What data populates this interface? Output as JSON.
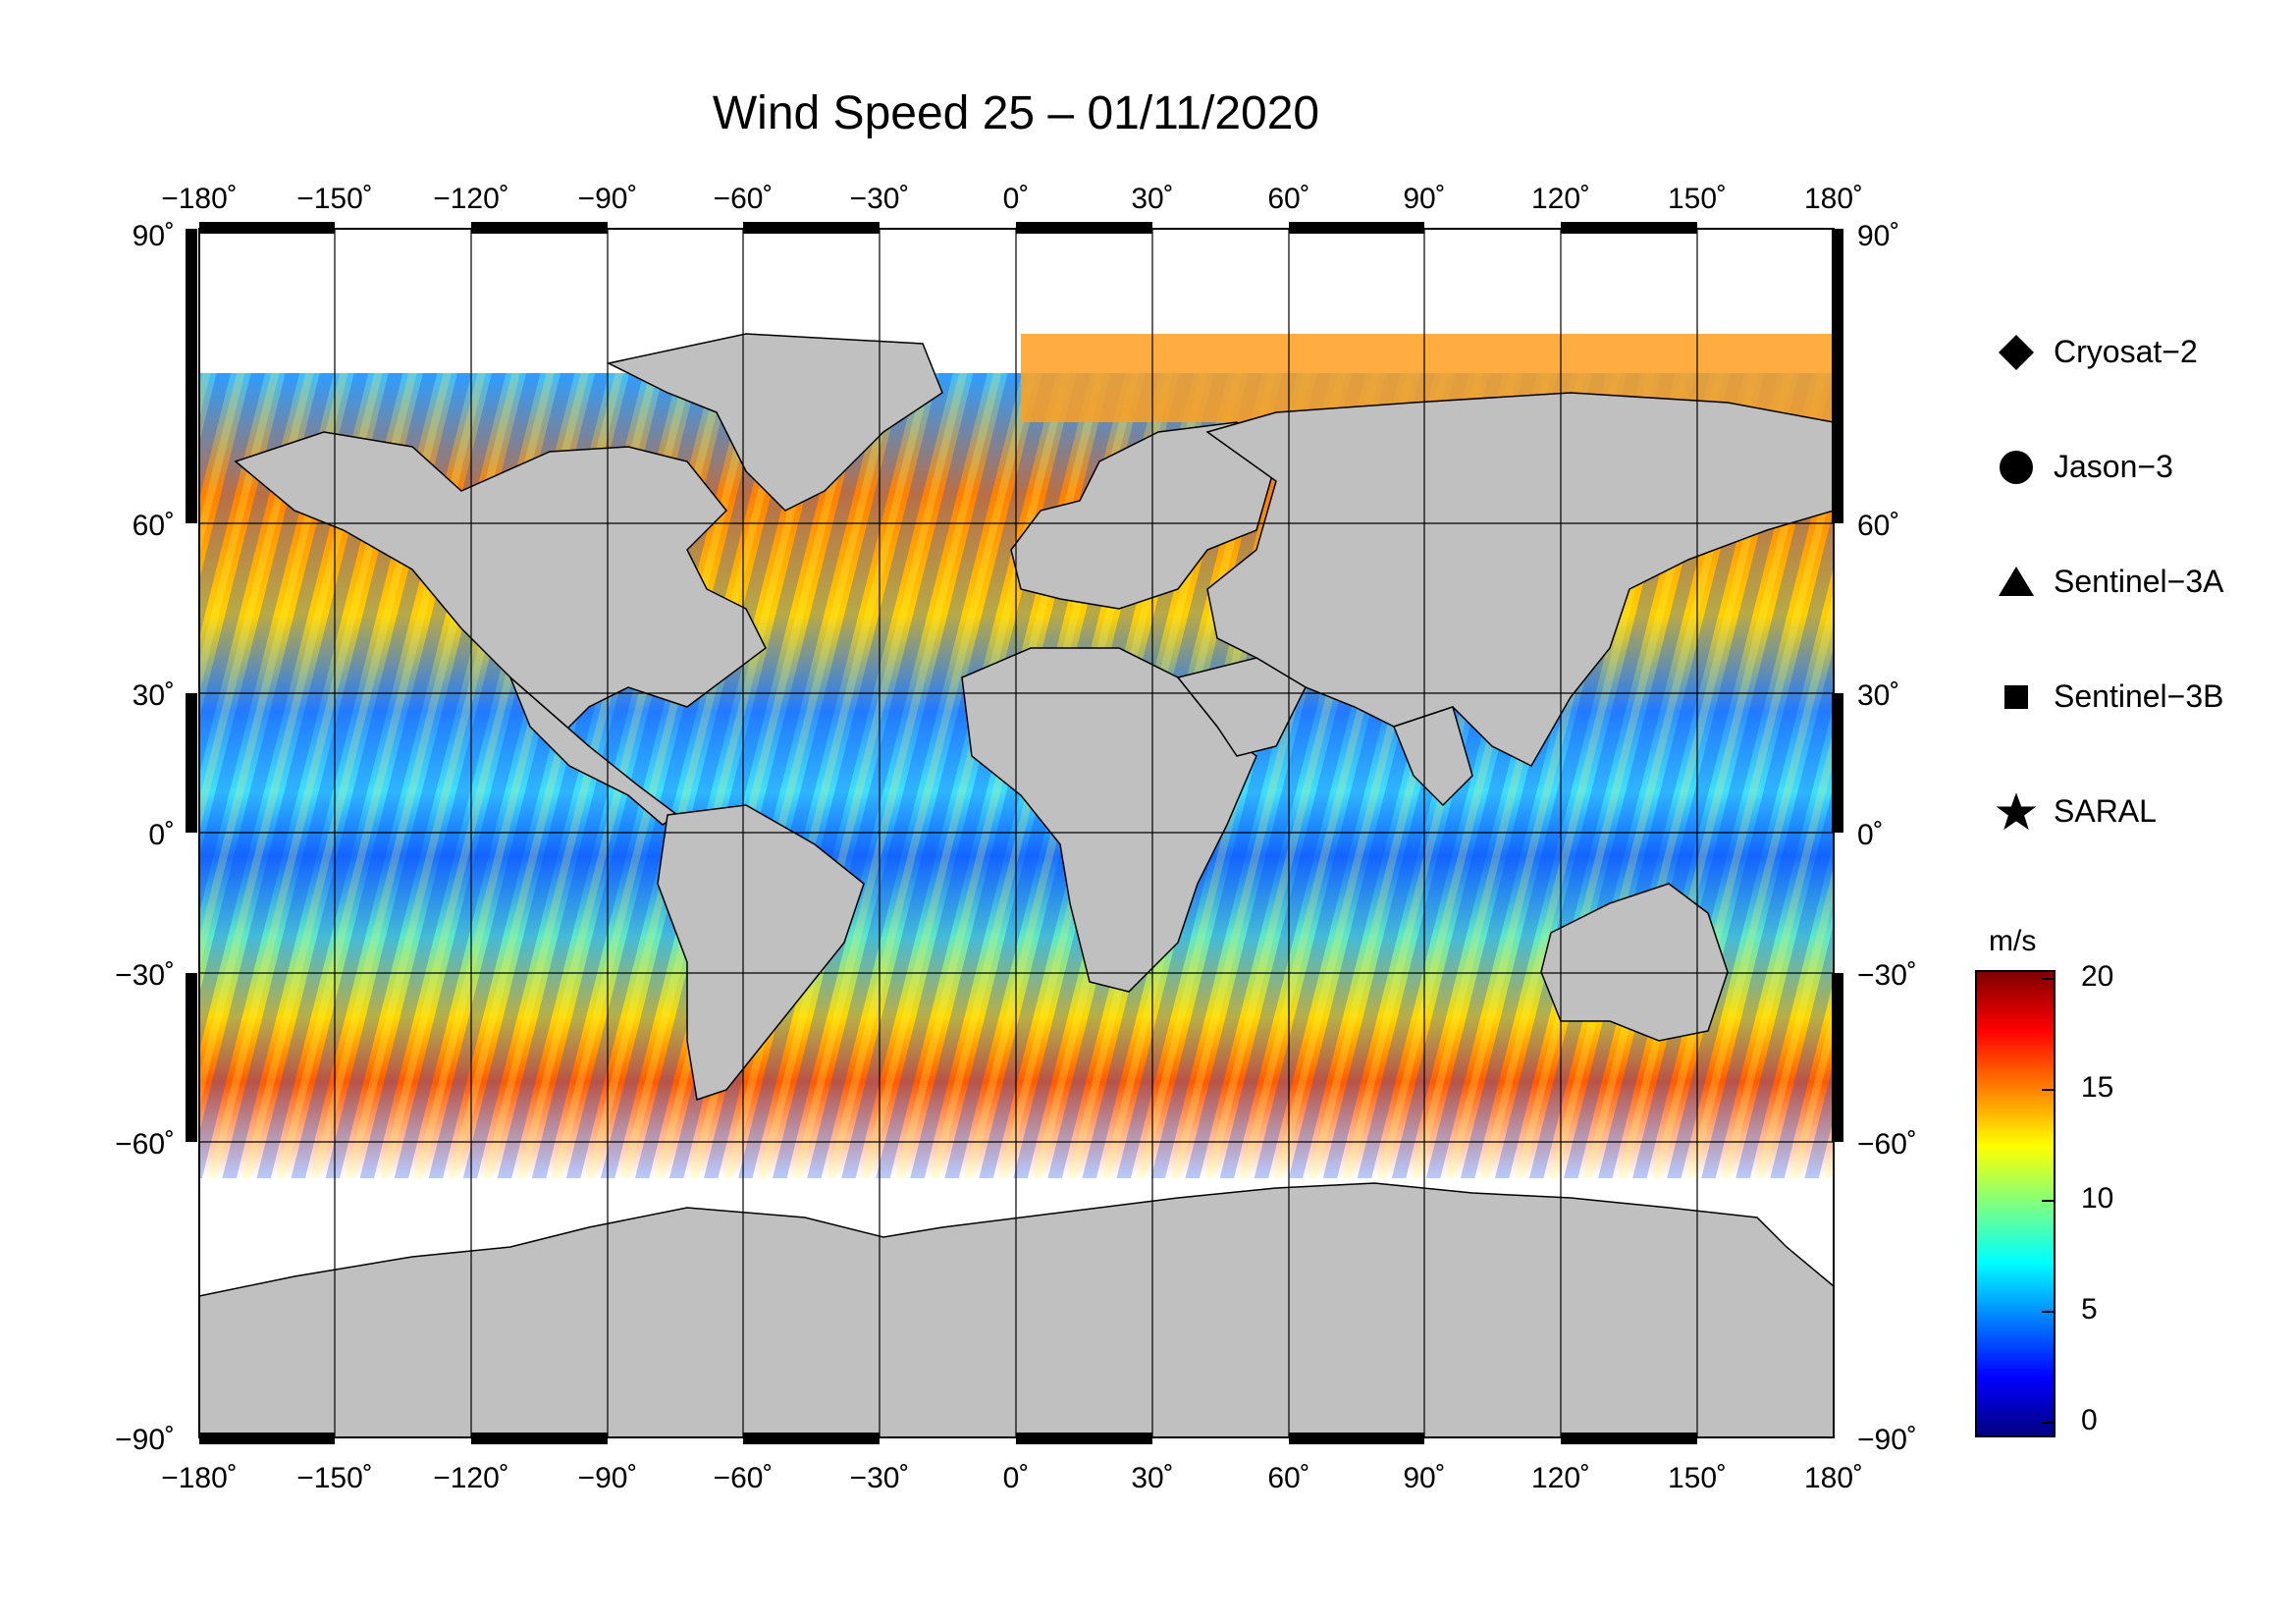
{
  "title": "Wind Speed 25 – 01/11/2020",
  "lon_ticks": [
    "−180˚",
    "−150˚",
    "−120˚",
    "−90˚",
    "−60˚",
    "−30˚",
    "0˚",
    "30˚",
    "60˚",
    "90˚",
    "120˚",
    "150˚",
    "180˚"
  ],
  "lat_ticks": [
    "90˚",
    "60˚",
    "30˚",
    "0˚",
    "−30˚",
    "−60˚",
    "−90˚"
  ],
  "legend": [
    {
      "name": "Cryosat−2",
      "icon": "diamond-icon"
    },
    {
      "name": "Jason−3",
      "icon": "circle-icon"
    },
    {
      "name": "Sentinel−3A",
      "icon": "triangle-icon"
    },
    {
      "name": "Sentinel−3B",
      "icon": "square-icon"
    },
    {
      "name": "SARAL",
      "icon": "star-icon"
    }
  ],
  "colorbar": {
    "unit": "m/s",
    "ticks": [
      "20",
      "15",
      "10",
      "5",
      "0"
    ],
    "min": 0,
    "max": 20,
    "colors": [
      "#00007f",
      "#0000ff",
      "#007fff",
      "#00ffff",
      "#7fff7f",
      "#ffff00",
      "#ff7f00",
      "#ff0000",
      "#7f0000"
    ]
  },
  "colors": {
    "land": "#c0c0c0",
    "ice_background": "#ffffff",
    "grid": "#000000"
  }
}
